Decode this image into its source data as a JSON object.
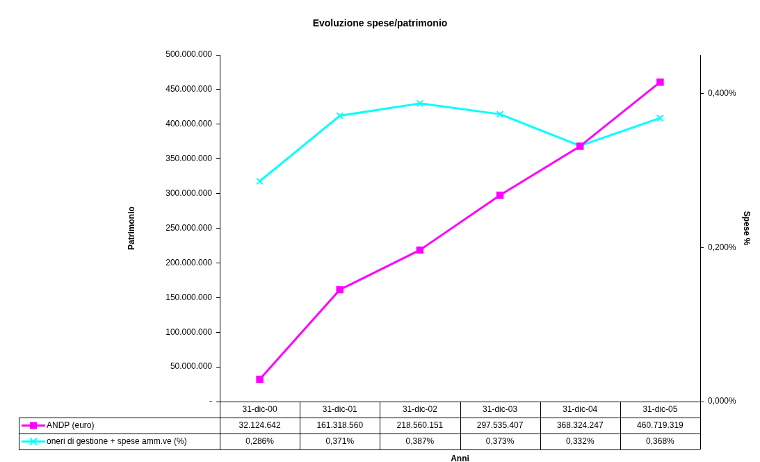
{
  "chart_data": {
    "type": "line",
    "title": "Evoluzione spese/patrimonio",
    "xlabel": "Anni",
    "ylabel": "Patrimonio",
    "y2label": "Spese %",
    "categories": [
      "31-dic-00",
      "31-dic-01",
      "31-dic-02",
      "31-dic-03",
      "31-dic-04",
      "31-dic-05"
    ],
    "series": [
      {
        "name": "ANDP (euro)",
        "color": "#ff00ff",
        "marker": "square",
        "values": [
          32124642,
          161318560,
          218560151,
          297535407,
          368324247,
          460719319
        ],
        "value_labels": [
          "32.124.642",
          "161.318.560",
          "218.560.151",
          "297.535.407",
          "368.324.247",
          "460.719.319"
        ]
      },
      {
        "name": "oneri di gestione + spese amm.ve (%)",
        "color": "#00ffff",
        "marker": "cross",
        "axis": "y2",
        "values": [
          0.286,
          0.371,
          0.387,
          0.373,
          0.332,
          0.368
        ],
        "value_labels": [
          "0,286%",
          "0,371%",
          "0,387%",
          "0,373%",
          "0,332%",
          "0,368%"
        ]
      }
    ],
    "ylim": [
      0,
      500000000
    ],
    "yticks": [
      {
        "value": 0,
        "label": "-"
      },
      {
        "value": 50000000,
        "label": "50.000.000"
      },
      {
        "value": 100000000,
        "label": "100.000.000"
      },
      {
        "value": 150000000,
        "label": "150.000.000"
      },
      {
        "value": 200000000,
        "label": "200.000.000"
      },
      {
        "value": 250000000,
        "label": "250.000.000"
      },
      {
        "value": 300000000,
        "label": "300.000.000"
      },
      {
        "value": 350000000,
        "label": "350.000.000"
      },
      {
        "value": 400000000,
        "label": "400.000.000"
      },
      {
        "value": 450000000,
        "label": "450.000.000"
      },
      {
        "value": 500000000,
        "label": "500.000.000"
      }
    ],
    "y2lim": [
      0,
      0.45
    ],
    "y2ticks": [
      {
        "value": 0,
        "label": "0,000%"
      },
      {
        "value": 0.2,
        "label": "0,200%"
      },
      {
        "value": 0.4,
        "label": "0,400%"
      }
    ],
    "grid": false,
    "legend": "bottom"
  }
}
